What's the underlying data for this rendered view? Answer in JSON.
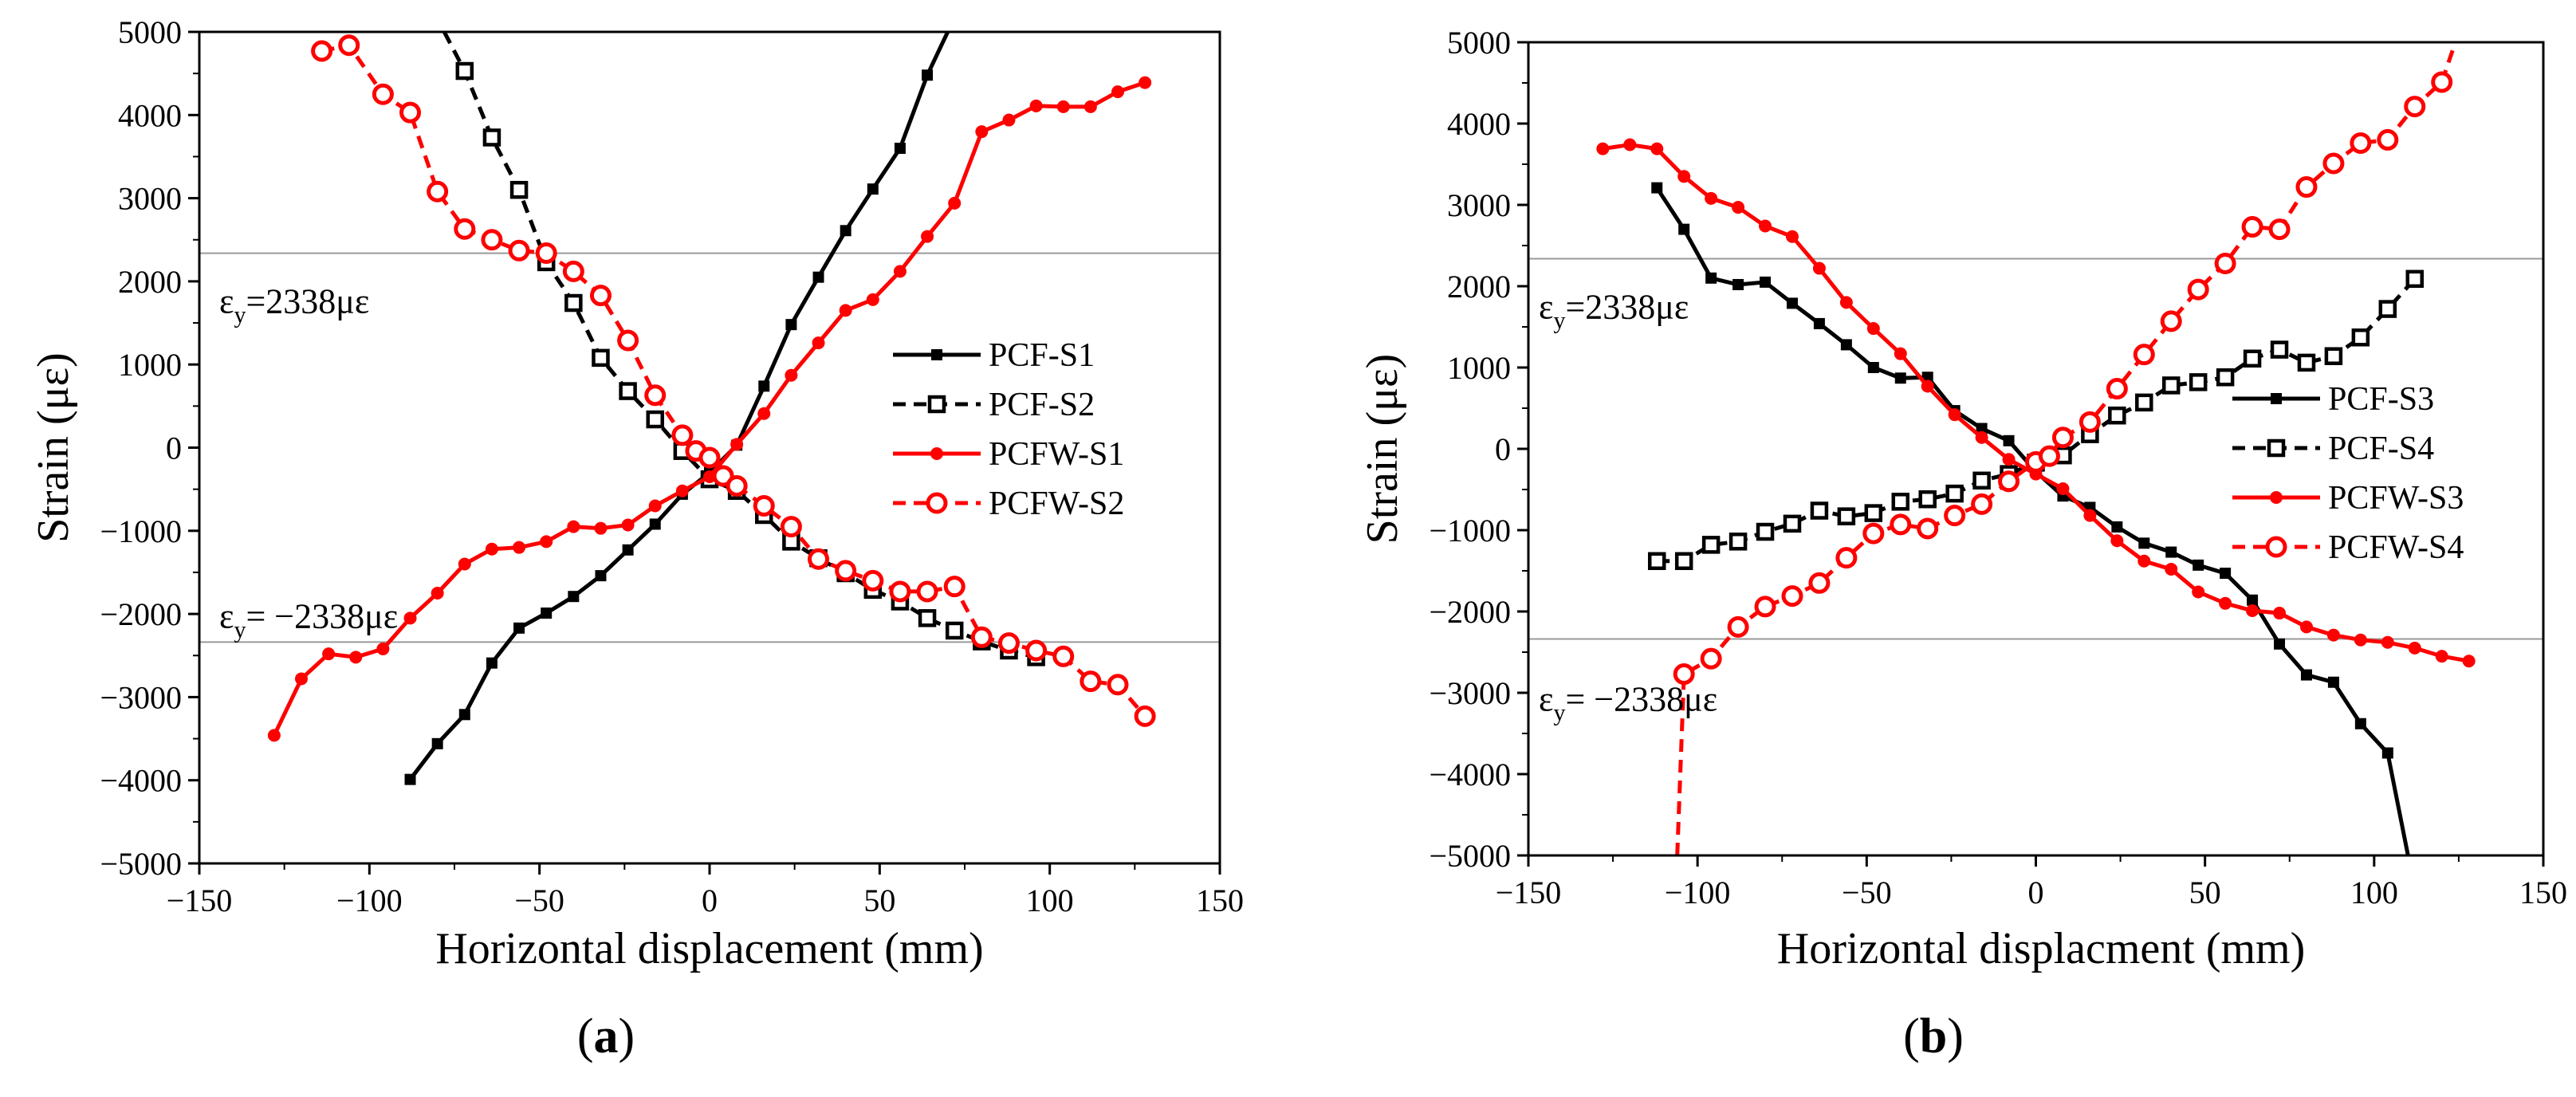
{
  "chart_data": [
    {
      "type": "line",
      "caption": "a",
      "xlabel": "Horizontal displacement (mm)",
      "ylabel": "Strain (με)",
      "xlim": [
        -150,
        150
      ],
      "ylim": [
        -5000,
        5000
      ],
      "xticks": [
        "-150",
        "-100",
        "-50",
        "0",
        "50",
        "100",
        "150"
      ],
      "yticks": [
        "-5000",
        "-4000",
        "-3000",
        "-2000",
        "-1000",
        "0",
        "1000",
        "2000",
        "3000",
        "4000",
        "5000"
      ],
      "annotations": [
        {
          "text": "εy=2338με",
          "sub": "y",
          "base": "ε",
          "rest": "=2338με",
          "y": 2338
        },
        {
          "text": "εy= −2338με",
          "sub": "y",
          "base": "ε",
          "rest": "= −2338με",
          "y": -2338
        }
      ],
      "legend_position": "right",
      "series": [
        {
          "name": "PCF-S1",
          "color": "#000000",
          "dashed": false,
          "marker": "square-filled",
          "x": [
            -88,
            -80,
            -72,
            -64,
            -56,
            -48,
            -40,
            -32,
            -24,
            -16,
            -8,
            0,
            8,
            16,
            24,
            32,
            40,
            48,
            56,
            64,
            70
          ],
          "y": [
            -3990,
            -3560,
            -3210,
            -2590,
            -2170,
            -1990,
            -1790,
            -1540,
            -1230,
            -920,
            -560,
            -300,
            30,
            740,
            1480,
            2050,
            2610,
            3110,
            3600,
            4480,
            5000
          ]
        },
        {
          "name": "PCF-S2",
          "color": "#000000",
          "dashed": true,
          "marker": "square-open",
          "x": [
            -78,
            -72,
            -64,
            -56,
            -48,
            -40,
            -32,
            -24,
            -16,
            -8,
            0,
            8,
            16,
            24,
            32,
            40,
            48,
            56,
            64,
            72,
            80,
            88,
            96
          ],
          "y": [
            5000,
            4530,
            3730,
            3100,
            2230,
            1740,
            1080,
            680,
            340,
            -40,
            -380,
            -520,
            -810,
            -1130,
            -1330,
            -1510,
            -1710,
            -1850,
            -2050,
            -2200,
            -2330,
            -2440,
            -2520
          ]
        },
        {
          "name": "PCFW-S1",
          "color": "#ff0000",
          "dashed": false,
          "marker": "circle-filled",
          "x": [
            -128,
            -120,
            -112,
            -104,
            -96,
            -88,
            -80,
            -72,
            -64,
            -56,
            -48,
            -40,
            -32,
            -24,
            -16,
            -8,
            0,
            8,
            16,
            24,
            32,
            40,
            48,
            56,
            64,
            72,
            80,
            88,
            96,
            104,
            112,
            120,
            128
          ],
          "y": [
            -3460,
            -2780,
            -2480,
            -2520,
            -2420,
            -2050,
            -1750,
            -1400,
            -1220,
            -1200,
            -1130,
            -950,
            -970,
            -930,
            -700,
            -520,
            -350,
            40,
            410,
            870,
            1260,
            1650,
            1780,
            2120,
            2540,
            2940,
            3800,
            3940,
            4110,
            4100,
            4100,
            4280,
            4390
          ]
        },
        {
          "name": "PCFW-S2",
          "color": "#ff0000",
          "dashed": true,
          "marker": "circle-open",
          "x": [
            -114,
            -106,
            -96,
            -88,
            -80,
            -72,
            -64,
            -56,
            -48,
            -40,
            -32,
            -24,
            -16,
            -8,
            -4,
            0,
            4,
            8,
            16,
            24,
            32,
            40,
            48,
            56,
            64,
            72,
            80,
            88,
            96,
            104,
            112,
            120,
            128
          ],
          "y": [
            4770,
            4840,
            4250,
            4030,
            3080,
            2630,
            2500,
            2370,
            2340,
            2120,
            1830,
            1290,
            630,
            150,
            -40,
            -120,
            -340,
            -460,
            -700,
            -950,
            -1340,
            -1480,
            -1600,
            -1730,
            -1730,
            -1670,
            -2280,
            -2350,
            -2440,
            -2510,
            -2810,
            -2850,
            -3230
          ]
        }
      ]
    },
    {
      "type": "line",
      "caption": "b",
      "xlabel": "Horizontal displacment (mm)",
      "ylabel": "Strain (με)",
      "xlim": [
        -150,
        150
      ],
      "ylim": [
        -5000,
        5000
      ],
      "xticks": [
        "-150",
        "-100",
        "-50",
        "0",
        "50",
        "100",
        "150"
      ],
      "yticks": [
        "-5000",
        "-4000",
        "-3000",
        "-2000",
        "-1000",
        "0",
        "1000",
        "2000",
        "3000",
        "4000",
        "5000"
      ],
      "annotations": [
        {
          "text": "εy=2338με",
          "sub": "y",
          "base": "ε",
          "rest": "=2338με",
          "y": 2338
        },
        {
          "text": "εy= −2338με",
          "sub": "y",
          "base": "ε",
          "rest": "= −2338με",
          "y": -2338
        }
      ],
      "legend_position": "right",
      "series": [
        {
          "name": "PCF-S3",
          "color": "#000000",
          "dashed": false,
          "marker": "square-filled",
          "x": [
            -112,
            -104,
            -96,
            -88,
            -80,
            -72,
            -64,
            -56,
            -48,
            -40,
            -32,
            -24,
            -16,
            -8,
            0,
            8,
            16,
            24,
            32,
            40,
            48,
            56,
            64,
            72,
            80,
            88,
            96,
            104,
            110
          ],
          "y": [
            3210,
            2700,
            2100,
            2020,
            2050,
            1790,
            1540,
            1280,
            1000,
            870,
            880,
            470,
            250,
            100,
            -280,
            -580,
            -720,
            -960,
            -1160,
            -1270,
            -1430,
            -1530,
            -1860,
            -2400,
            -2780,
            -2870,
            -3380,
            -3740,
            -5000
          ]
        },
        {
          "name": "PCF-S4",
          "color": "#000000",
          "dashed": true,
          "marker": "square-open",
          "x": [
            -112,
            -104,
            -96,
            -88,
            -80,
            -72,
            -64,
            -56,
            -48,
            -40,
            -32,
            -24,
            -16,
            -8,
            0,
            8,
            16,
            24,
            32,
            40,
            48,
            56,
            64,
            72,
            80,
            88,
            96,
            104,
            112
          ],
          "y": [
            -1380,
            -1380,
            -1180,
            -1140,
            -1020,
            -920,
            -760,
            -830,
            -790,
            -650,
            -620,
            -550,
            -390,
            -310,
            -170,
            -80,
            180,
            410,
            570,
            780,
            820,
            880,
            1110,
            1220,
            1060,
            1140,
            1370,
            1720,
            2090
          ]
        },
        {
          "name": "PCFW-S3",
          "color": "#ff0000",
          "dashed": false,
          "marker": "circle-filled",
          "x": [
            -128,
            -120,
            -112,
            -104,
            -96,
            -88,
            -80,
            -72,
            -64,
            -56,
            -48,
            -40,
            -32,
            -24,
            -16,
            -8,
            0,
            8,
            16,
            24,
            32,
            40,
            48,
            56,
            64,
            72,
            80,
            88,
            96,
            104,
            112,
            120,
            128
          ],
          "y": [
            3690,
            3740,
            3690,
            3350,
            3080,
            2970,
            2740,
            2610,
            2220,
            1800,
            1480,
            1170,
            770,
            420,
            140,
            -130,
            -310,
            -490,
            -820,
            -1130,
            -1380,
            -1480,
            -1760,
            -1900,
            -1990,
            -2020,
            -2190,
            -2290,
            -2350,
            -2380,
            -2450,
            -2550,
            -2610
          ]
        },
        {
          "name": "PCFW-S4",
          "color": "#ff0000",
          "dashed": true,
          "marker": "circle-open",
          "x": [
            -106,
            -104,
            -96,
            -88,
            -80,
            -72,
            -64,
            -56,
            -48,
            -40,
            -32,
            -24,
            -16,
            -8,
            0,
            4,
            8,
            16,
            24,
            32,
            40,
            48,
            56,
            64,
            72,
            80,
            88,
            96,
            104,
            112,
            120,
            124
          ],
          "y": [
            -5000,
            -2770,
            -2580,
            -2190,
            -1940,
            -1810,
            -1650,
            -1340,
            -1040,
            -930,
            -980,
            -820,
            -680,
            -400,
            -160,
            -90,
            140,
            330,
            740,
            1160,
            1570,
            1960,
            2280,
            2730,
            2700,
            3220,
            3510,
            3760,
            3800,
            4210,
            4510,
            5000
          ]
        }
      ]
    }
  ]
}
